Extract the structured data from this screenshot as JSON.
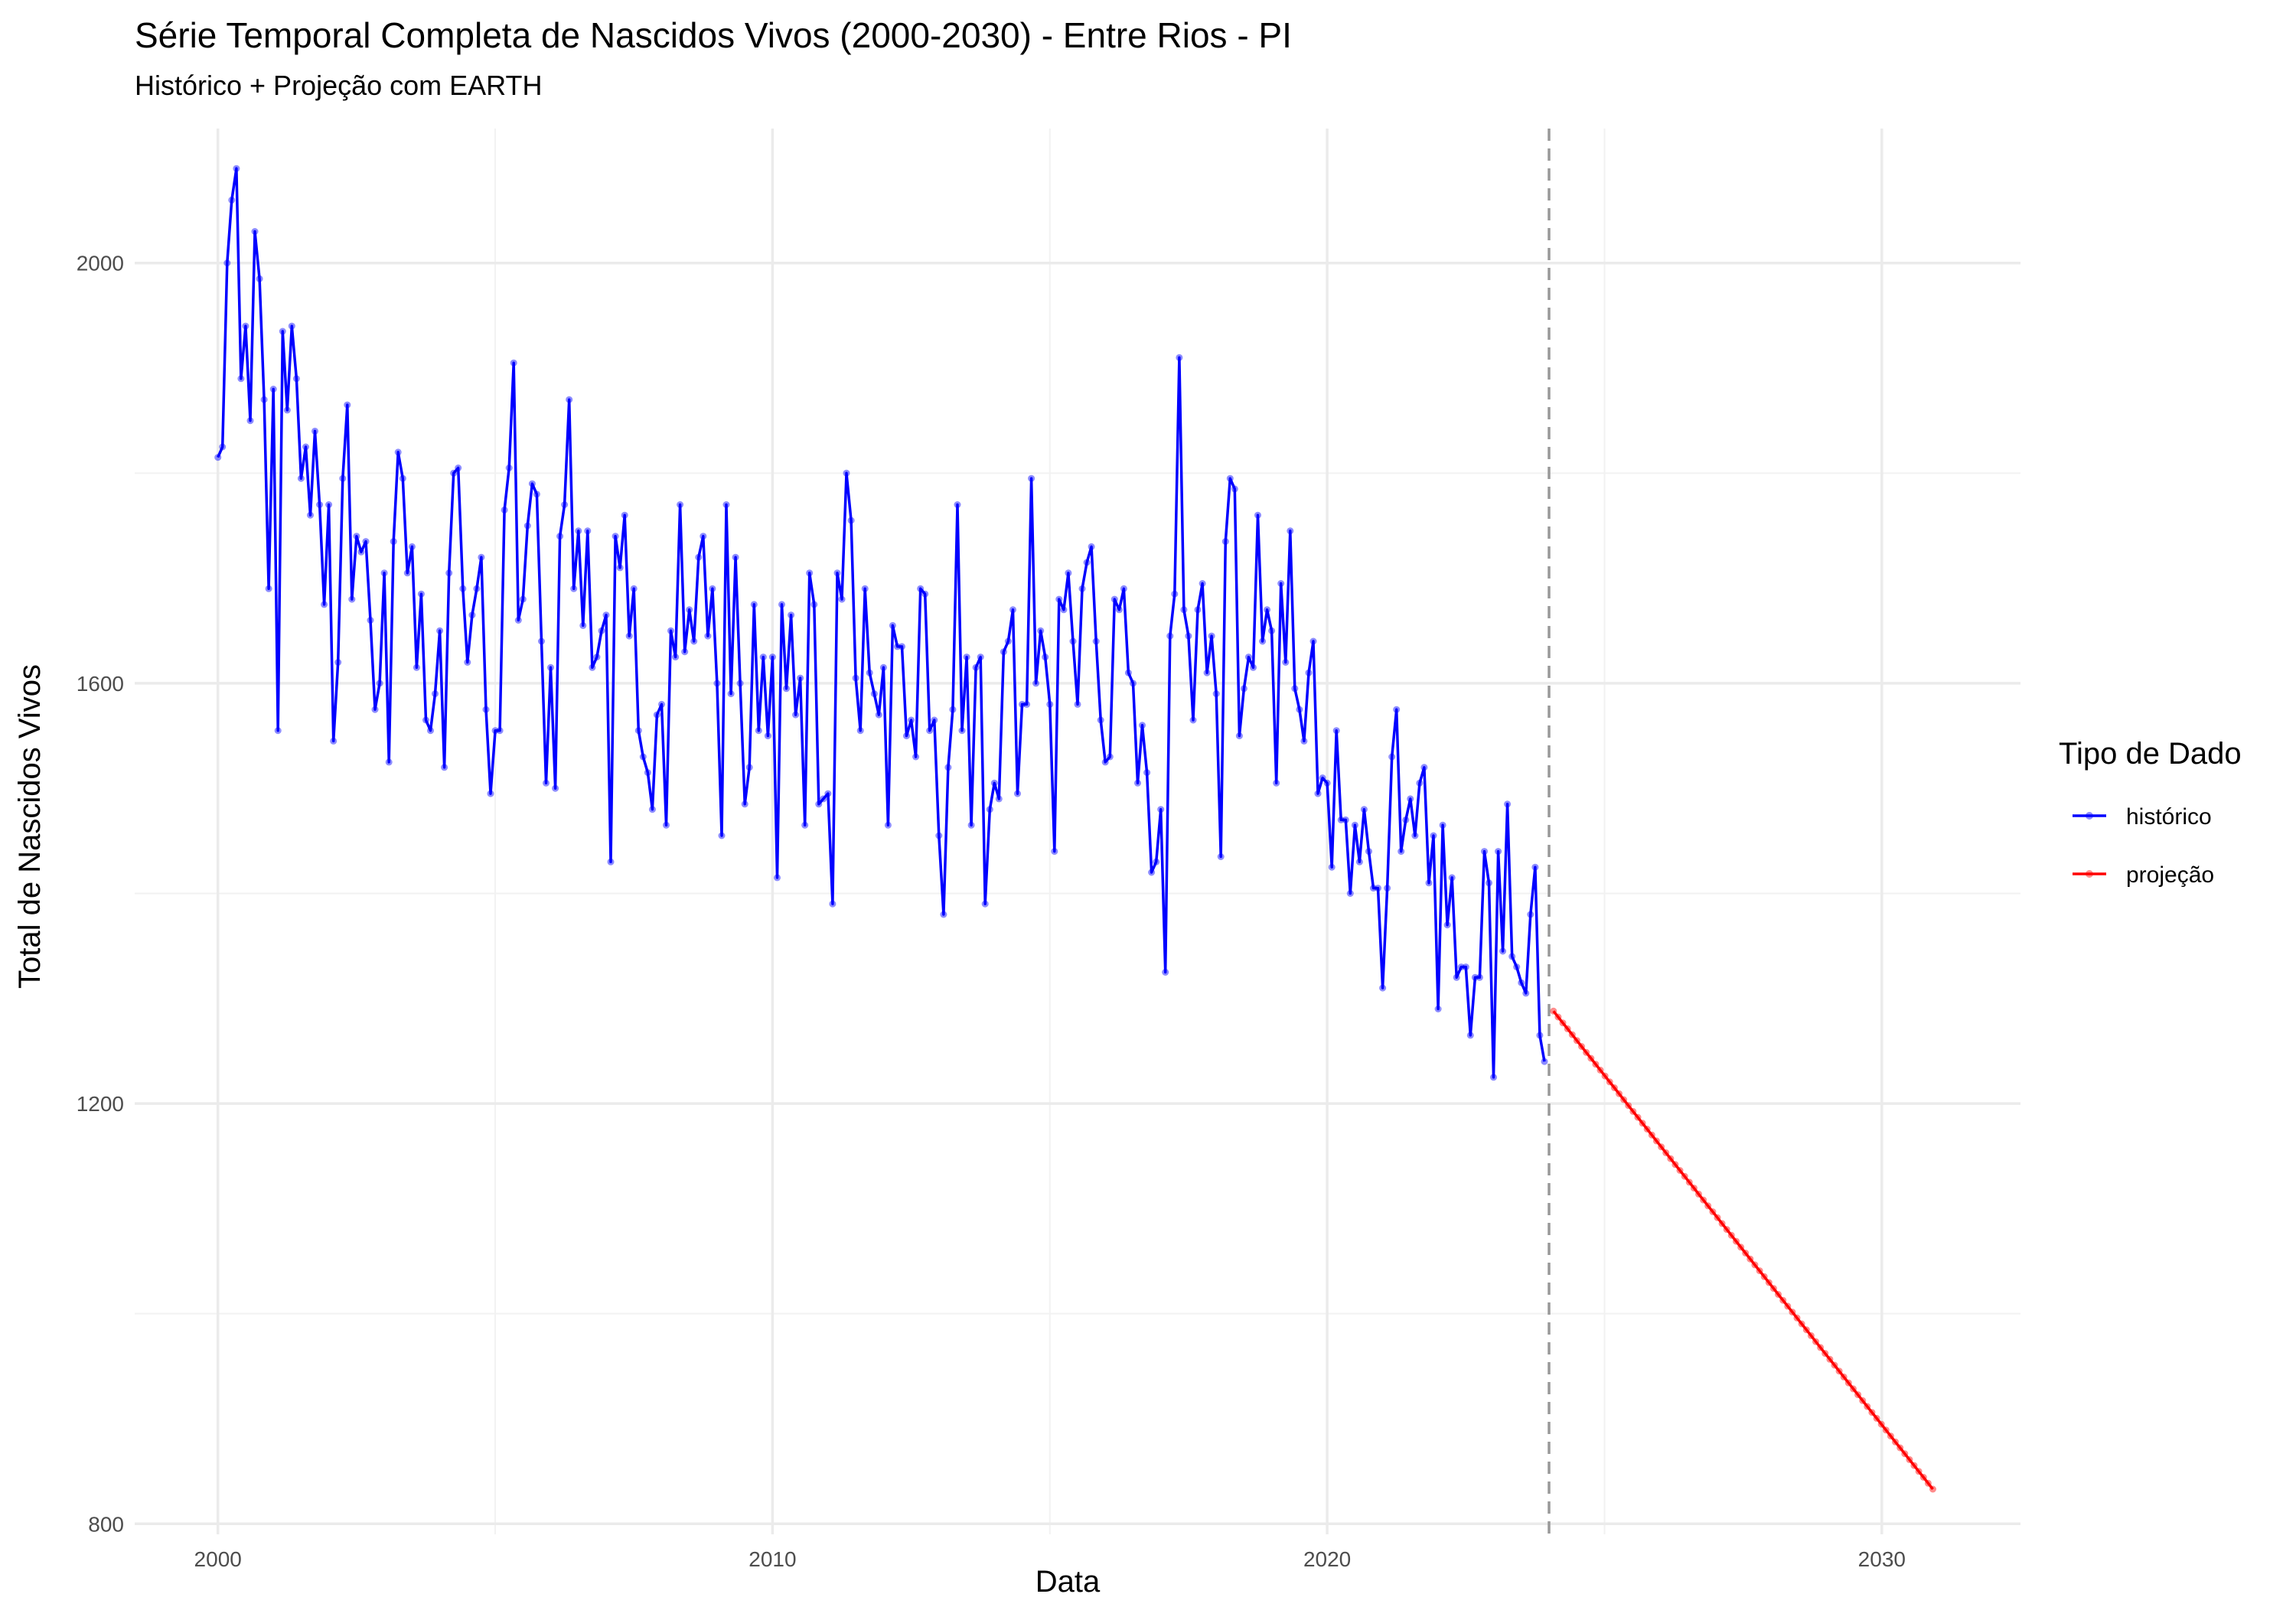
{
  "chart_data": {
    "type": "line",
    "title": "Série Temporal Completa de Nascidos Vivos (2000-2030) -  Entre Rios - PI",
    "subtitle": "Histórico + Projeção com EARTH",
    "xlabel": "Data",
    "ylabel": "Total de Nascidos Vivos",
    "xlim": [
      1998.5,
      2032.5
    ],
    "ylim": [
      790,
      2128
    ],
    "x_ticks": [
      2000,
      2010,
      2020,
      2030
    ],
    "x_tick_labels": [
      "2000",
      "2010",
      "2020",
      "2030"
    ],
    "y_ticks": [
      800,
      1200,
      1600,
      2000
    ],
    "y_tick_labels": [
      "800",
      "1200",
      "1600",
      "2000"
    ],
    "grid": true,
    "legend": {
      "title": "Tipo de Dado",
      "position": "right"
    },
    "separator_x": 2024.0,
    "series": [
      {
        "name": "histórico",
        "color": "#0000ff",
        "x_start": 2000.0,
        "x_step": 0.0833333,
        "values": [
          1815,
          1825,
          2000,
          2060,
          2090,
          1890,
          1940,
          1850,
          2030,
          1985,
          1870,
          1690,
          1880,
          1555,
          1935,
          1860,
          1940,
          1890,
          1795,
          1825,
          1760,
          1840,
          1770,
          1675,
          1770,
          1545,
          1620,
          1795,
          1865,
          1680,
          1740,
          1725,
          1735,
          1660,
          1575,
          1600,
          1705,
          1525,
          1735,
          1820,
          1795,
          1705,
          1730,
          1615,
          1685,
          1565,
          1555,
          1590,
          1650,
          1520,
          1705,
          1800,
          1805,
          1690,
          1620,
          1665,
          1690,
          1720,
          1575,
          1495,
          1555,
          1555,
          1765,
          1805,
          1905,
          1660,
          1680,
          1750,
          1790,
          1780,
          1640,
          1505,
          1615,
          1500,
          1740,
          1770,
          1870,
          1690,
          1745,
          1655,
          1745,
          1615,
          1625,
          1650,
          1665,
          1430,
          1740,
          1710,
          1760,
          1645,
          1690,
          1555,
          1530,
          1515,
          1480,
          1570,
          1580,
          1465,
          1650,
          1625,
          1770,
          1630,
          1670,
          1640,
          1720,
          1740,
          1645,
          1690,
          1600,
          1455,
          1770,
          1590,
          1720,
          1600,
          1485,
          1520,
          1675,
          1555,
          1625,
          1550,
          1625,
          1415,
          1675,
          1595,
          1665,
          1570,
          1605,
          1465,
          1705,
          1675,
          1485,
          1490,
          1495,
          1390,
          1705,
          1680,
          1800,
          1755,
          1605,
          1555,
          1690,
          1610,
          1590,
          1570,
          1615,
          1465,
          1655,
          1635,
          1635,
          1550,
          1565,
          1530,
          1690,
          1685,
          1555,
          1565,
          1455,
          1380,
          1520,
          1575,
          1770,
          1555,
          1625,
          1465,
          1615,
          1625,
          1390,
          1480,
          1505,
          1490,
          1630,
          1640,
          1670,
          1495,
          1580,
          1580,
          1795,
          1600,
          1650,
          1625,
          1580,
          1440,
          1680,
          1670,
          1705,
          1640,
          1580,
          1690,
          1715,
          1730,
          1640,
          1565,
          1525,
          1530,
          1680,
          1670,
          1690,
          1610,
          1600,
          1505,
          1560,
          1515,
          1420,
          1430,
          1480,
          1325,
          1645,
          1685,
          1910,
          1670,
          1645,
          1565,
          1670,
          1695,
          1610,
          1645,
          1590,
          1435,
          1735,
          1795,
          1785,
          1550,
          1595,
          1625,
          1615,
          1760,
          1640,
          1670,
          1650,
          1505,
          1695,
          1620,
          1745,
          1595,
          1575,
          1545,
          1610,
          1640,
          1495,
          1510,
          1505,
          1425,
          1555,
          1470,
          1470,
          1400,
          1465,
          1430,
          1480,
          1440,
          1405,
          1405,
          1310,
          1405,
          1530,
          1575,
          1440,
          1470,
          1490,
          1455,
          1505,
          1520,
          1410,
          1455,
          1290,
          1465,
          1370,
          1415,
          1320,
          1330,
          1330,
          1265,
          1320,
          1320,
          1440,
          1410,
          1225,
          1440,
          1345,
          1485,
          1340,
          1330,
          1315,
          1305,
          1380,
          1425,
          1265,
          1240
        ]
      },
      {
        "name": "projeção",
        "color": "#ff0000",
        "x": [
          2024.08,
          2030.92
        ],
        "values": [
          1288,
          833
        ]
      }
    ]
  }
}
